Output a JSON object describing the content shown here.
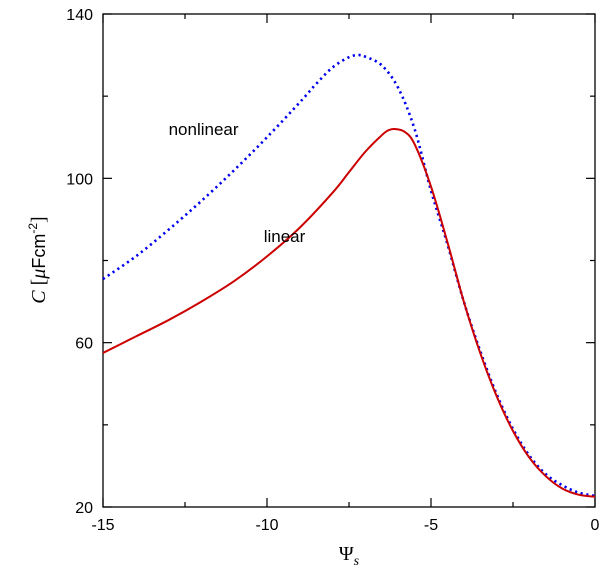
{
  "chart_data": {
    "type": "line",
    "xlim": [
      -15,
      0
    ],
    "ylim": [
      20,
      140
    ],
    "xticks": [
      -15,
      -10,
      -5,
      0
    ],
    "yticks": [
      20,
      60,
      100,
      140
    ],
    "x_minor_step": 2.5,
    "y_minor_step": 20,
    "grid": false,
    "legend": "none",
    "xlabel": {
      "symbol": "Ψ",
      "subscript": "s"
    },
    "ylabel": {
      "symbol": "C",
      "unit_open": " [",
      "mu": "μ",
      "unit_body": "Fcm",
      "unit_exp": "-2",
      "unit_close": "]"
    },
    "annotations": [
      {
        "text": "nonlinear",
        "x": -13.0,
        "y": 110.5,
        "series": "nonlinear"
      },
      {
        "text": "linear",
        "x": -10.1,
        "y": 84.5,
        "series": "linear"
      }
    ],
    "series": [
      {
        "name": "nonlinear",
        "color": "#0000ee",
        "style": "dotted",
        "x": [
          -15,
          -14,
          -13,
          -12,
          -11,
          -10,
          -9,
          -8.5,
          -8,
          -7.5,
          -7.2,
          -7,
          -6.5,
          -6,
          -5.5,
          -5,
          -4.5,
          -4,
          -3.5,
          -3,
          -2.5,
          -2,
          -1.5,
          -1,
          -0.5,
          0
        ],
        "y": [
          75.5,
          81,
          87.5,
          94.5,
          102,
          110,
          118.5,
          123,
          127,
          129.5,
          130,
          129.6,
          127.5,
          122,
          112,
          97,
          84,
          70,
          58,
          47.5,
          39,
          32.5,
          28,
          25.3,
          23.5,
          22.7
        ]
      },
      {
        "name": "linear",
        "color": "#cc0000",
        "style": "solid",
        "x": [
          -15,
          -14,
          -13,
          -12,
          -11,
          -10,
          -9,
          -8,
          -7.5,
          -7,
          -6.5,
          -6.3,
          -6.1,
          -5.8,
          -5.5,
          -5,
          -4.5,
          -4,
          -3.5,
          -3,
          -2.5,
          -2,
          -1.5,
          -1,
          -0.5,
          0
        ],
        "y": [
          57.5,
          61.5,
          65.5,
          70,
          75,
          81,
          88,
          96.5,
          101.5,
          106.5,
          110.5,
          111.7,
          112,
          111.3,
          108.3,
          98,
          84.5,
          70,
          57.5,
          47,
          38.5,
          32,
          27.5,
          24.5,
          23,
          22.5
        ]
      }
    ]
  }
}
